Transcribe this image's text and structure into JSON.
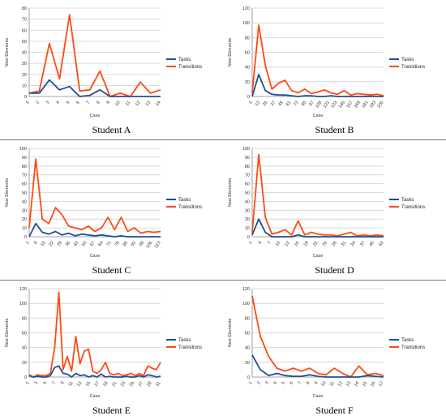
{
  "colors": {
    "tasks": "#1f4e96",
    "transitions": "#ff4a12",
    "grid": "#cfcfcf",
    "axis": "#888888"
  },
  "chart_data": [
    {
      "type": "line",
      "title": "Student A",
      "xlabel": "Case",
      "ylabel": "New Elements",
      "grid": true,
      "legend_position": "right",
      "ylim": [
        0,
        80
      ],
      "yticks": [
        "0",
        "10",
        "20",
        "30",
        "40",
        "50",
        "60",
        "70",
        "80"
      ],
      "x_ticks": [
        "1",
        "2",
        "3",
        "4",
        "5",
        "6",
        "7",
        "8",
        "9",
        "10",
        "11",
        "12",
        "13",
        "14"
      ],
      "series": [
        {
          "name": "Tasks",
          "values": [
            3,
            3,
            15,
            6,
            9,
            0,
            1,
            6,
            0,
            0,
            0,
            0,
            0,
            0
          ]
        },
        {
          "name": "Transitions",
          "values": [
            3,
            5,
            48,
            16,
            74,
            5,
            6,
            23,
            0,
            3,
            0,
            13,
            3,
            6
          ]
        }
      ]
    },
    {
      "type": "line",
      "title": "Student B",
      "xlabel": "Case",
      "ylabel": "New Elements",
      "grid": true,
      "legend_position": "right",
      "ylim": [
        0,
        120
      ],
      "yticks": [
        "0",
        "20",
        "40",
        "60",
        "80",
        "100",
        "120"
      ],
      "x_ticks": [
        "1",
        "13",
        "25",
        "37",
        "49",
        "61",
        "73",
        "85",
        "97",
        "109",
        "121",
        "133",
        "145",
        "157",
        "169",
        "181",
        "193",
        "205"
      ],
      "series": [
        {
          "name": "Tasks",
          "values": [
            0,
            30,
            8,
            3,
            2,
            2,
            1,
            0,
            1,
            1,
            0,
            0,
            1,
            0,
            0,
            0,
            0,
            0,
            0,
            0,
            0
          ]
        },
        {
          "name": "Transitions",
          "values": [
            5,
            97,
            42,
            10,
            18,
            22,
            8,
            5,
            10,
            4,
            6,
            9,
            5,
            3,
            8,
            2,
            4,
            3,
            2,
            3,
            1
          ]
        }
      ]
    },
    {
      "type": "line",
      "title": "Student C",
      "xlabel": "Case",
      "ylabel": "New Elements",
      "grid": true,
      "legend_position": "right",
      "ylim": [
        0,
        100
      ],
      "yticks": [
        "0",
        "10",
        "20",
        "30",
        "40",
        "50",
        "60",
        "70",
        "80",
        "90",
        "100"
      ],
      "x_ticks": [
        "1",
        "8",
        "15",
        "22",
        "29",
        "36",
        "43",
        "50",
        "57",
        "64",
        "71",
        "78",
        "85",
        "92",
        "99",
        "106",
        "113"
      ],
      "series": [
        {
          "name": "Tasks",
          "values": [
            0,
            15,
            5,
            3,
            6,
            2,
            4,
            1,
            3,
            2,
            1,
            2,
            1,
            0,
            1,
            0,
            0,
            0,
            0,
            0,
            0
          ]
        },
        {
          "name": "Transitions",
          "values": [
            10,
            88,
            20,
            15,
            33,
            25,
            12,
            10,
            8,
            12,
            6,
            10,
            22,
            8,
            22,
            6,
            10,
            4,
            6,
            5,
            6
          ]
        }
      ]
    },
    {
      "type": "line",
      "title": "Student D",
      "xlabel": "Case",
      "ylabel": "New Elements",
      "grid": true,
      "legend_position": "right",
      "ylim": [
        0,
        100
      ],
      "yticks": [
        "0",
        "10",
        "20",
        "30",
        "40",
        "50",
        "60",
        "70",
        "80",
        "90",
        "100"
      ],
      "x_ticks": [
        "1",
        "4",
        "7",
        "10",
        "13",
        "16",
        "19",
        "22",
        "25",
        "28",
        "31",
        "34",
        "37",
        "40",
        "43"
      ],
      "series": [
        {
          "name": "Tasks",
          "values": [
            2,
            20,
            5,
            0,
            0,
            0,
            0,
            2,
            0,
            0,
            0,
            0,
            0,
            0,
            0,
            0,
            0,
            0,
            0,
            0,
            0
          ]
        },
        {
          "name": "Transitions",
          "values": [
            5,
            93,
            22,
            3,
            5,
            8,
            2,
            18,
            2,
            5,
            3,
            2,
            2,
            1,
            3,
            5,
            1,
            2,
            1,
            2,
            1
          ]
        }
      ]
    },
    {
      "type": "line",
      "title": "Student E",
      "xlabel": "Case",
      "ylabel": "New Elements",
      "grid": true,
      "legend_position": "right",
      "ylim": [
        0,
        120
      ],
      "yticks": [
        "0",
        "20",
        "40",
        "60",
        "80",
        "100",
        "120"
      ],
      "x_ticks": [
        "1",
        "3",
        "5",
        "7",
        "9",
        "11",
        "13",
        "15",
        "17",
        "19",
        "21",
        "23",
        "25",
        "27",
        "29",
        "31"
      ],
      "series": [
        {
          "name": "Tasks",
          "values": [
            2,
            0,
            1,
            0,
            0,
            2,
            13,
            15,
            5,
            4,
            0,
            5,
            2,
            3,
            0,
            2,
            0,
            4,
            0,
            1,
            0,
            0,
            0,
            1,
            0,
            0,
            2,
            0,
            3,
            2,
            0,
            1
          ]
        },
        {
          "name": "Transitions",
          "values": [
            3,
            0,
            3,
            2,
            2,
            5,
            40,
            115,
            10,
            28,
            8,
            55,
            18,
            35,
            38,
            8,
            5,
            10,
            20,
            5,
            3,
            5,
            2,
            3,
            5,
            2,
            5,
            2,
            15,
            12,
            10,
            20
          ]
        }
      ]
    },
    {
      "type": "line",
      "title": "Student F",
      "xlabel": "Case",
      "ylabel": "New Elements",
      "grid": true,
      "legend_position": "right",
      "ylim": [
        0,
        120
      ],
      "yticks": [
        "0",
        "20",
        "40",
        "60",
        "80",
        "100",
        "120"
      ],
      "x_ticks": [
        "1",
        "2",
        "3",
        "4",
        "5",
        "6",
        "7",
        "8",
        "9",
        "10",
        "11",
        "12",
        "13",
        "14",
        "15",
        "16",
        "17"
      ],
      "series": [
        {
          "name": "Tasks",
          "values": [
            30,
            10,
            2,
            5,
            2,
            1,
            1,
            3,
            1,
            0,
            0,
            0,
            0,
            0,
            2,
            1,
            0
          ]
        },
        {
          "name": "Transitions",
          "values": [
            110,
            55,
            28,
            12,
            8,
            12,
            8,
            12,
            5,
            3,
            12,
            5,
            0,
            15,
            3,
            5,
            2
          ]
        }
      ]
    }
  ]
}
